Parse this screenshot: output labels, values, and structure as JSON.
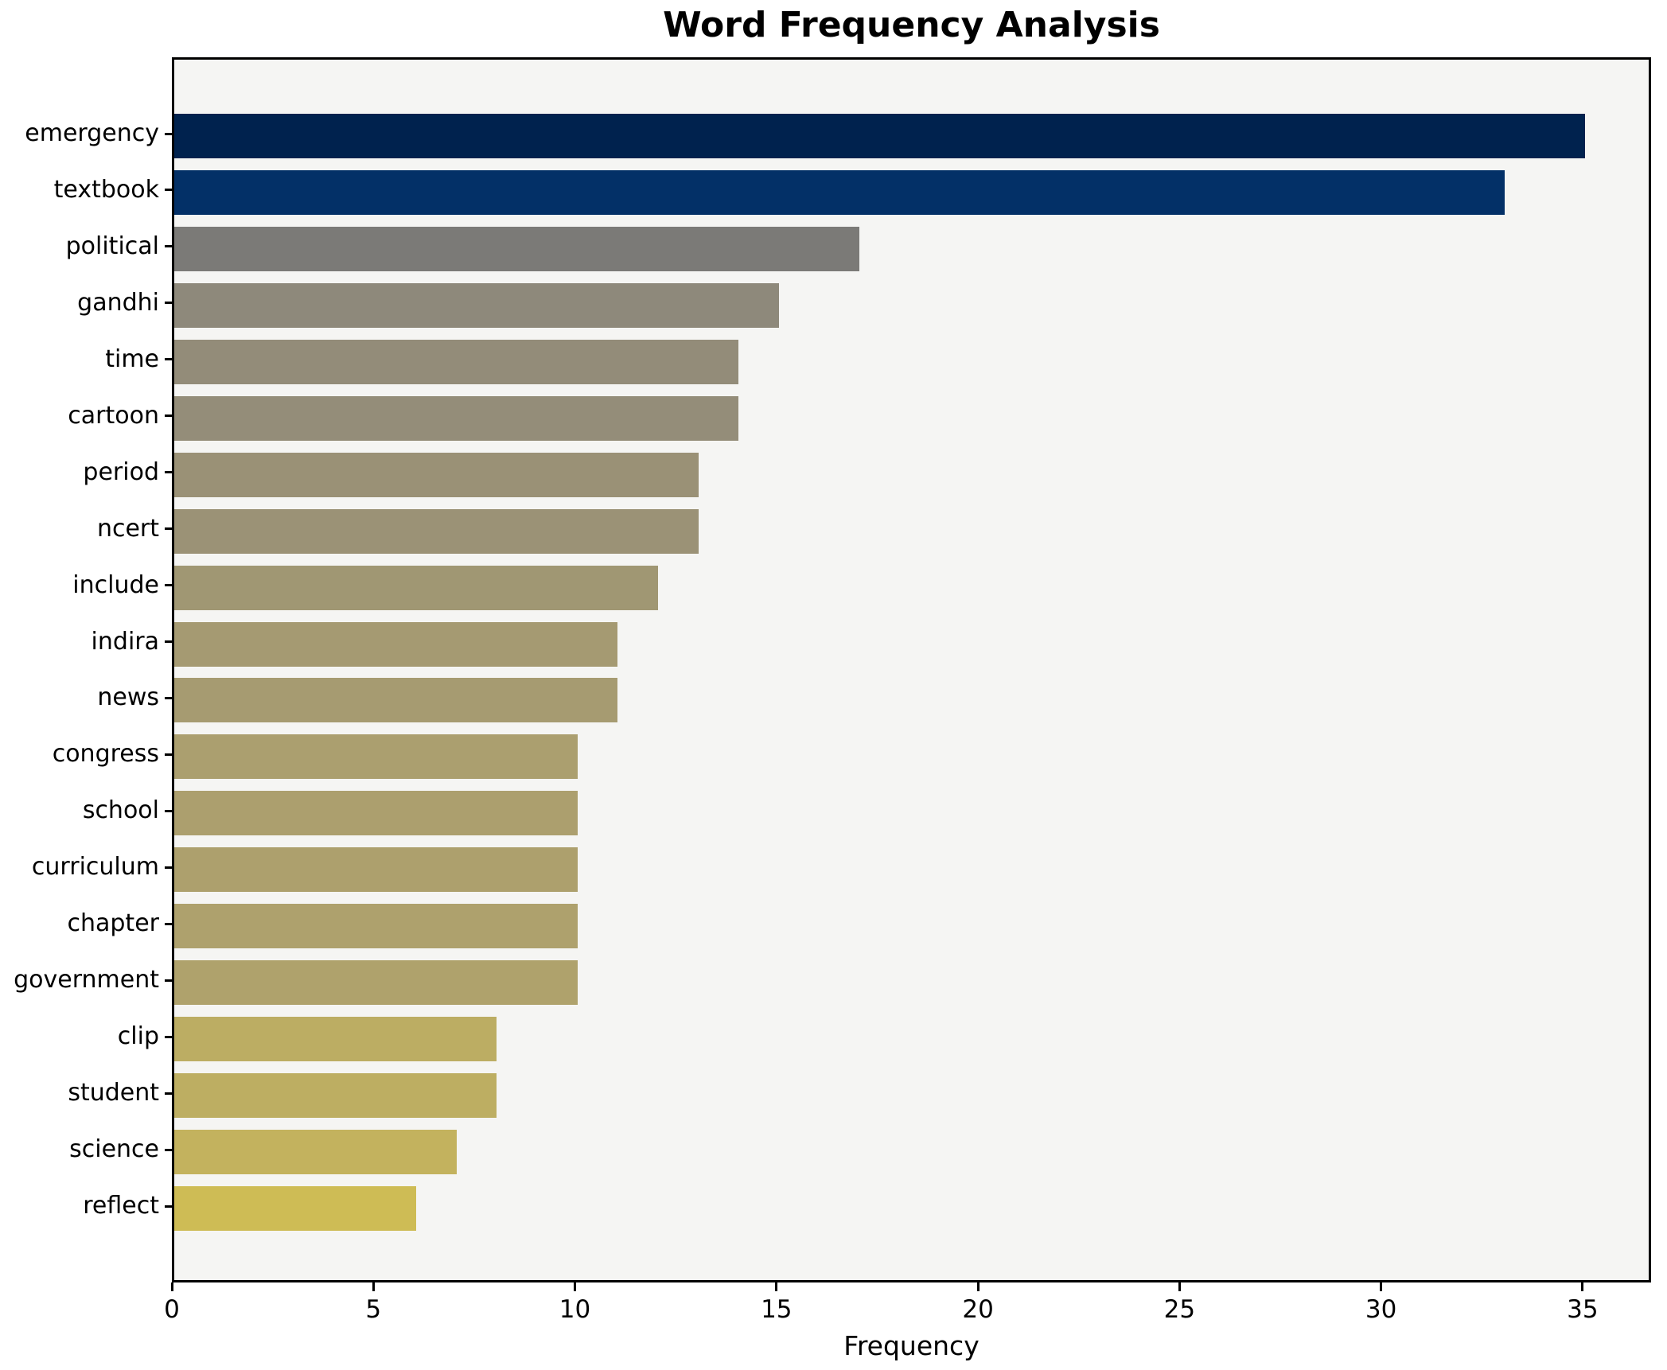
{
  "chart_data": {
    "type": "bar",
    "orientation": "horizontal",
    "title": "Word Frequency Analysis",
    "xlabel": "Frequency",
    "ylabel": "",
    "categories": [
      "emergency",
      "textbook",
      "political",
      "gandhi",
      "time",
      "cartoon",
      "period",
      "ncert",
      "include",
      "indira",
      "news",
      "congress",
      "school",
      "curriculum",
      "chapter",
      "government",
      "clip",
      "student",
      "science",
      "reflect"
    ],
    "values": [
      35,
      33,
      17,
      15,
      14,
      14,
      13,
      13,
      12,
      11,
      11,
      10,
      10,
      10,
      10,
      10,
      8,
      8,
      7,
      6
    ],
    "bar_colors": [
      "#00224e",
      "#033067",
      "#7b7a77",
      "#8e897b",
      "#938c79",
      "#948d79",
      "#9a9176",
      "#9b9276",
      "#a09773",
      "#a59a72",
      "#a69b71",
      "#ab9f6f",
      "#ac9f6e",
      "#ada06d",
      "#aea16d",
      "#afa26c",
      "#bcad63",
      "#bdae62",
      "#c3b25e",
      "#cebc55"
    ],
    "x_ticks": [
      0,
      5,
      10,
      15,
      20,
      25,
      30,
      35
    ],
    "xlim": [
      0,
      36.7
    ],
    "grid": false,
    "legend": "none",
    "plot_background": "#f5f5f3",
    "figure_background": "#ffffff",
    "spine_color": "#000000",
    "text_color": "#000000"
  }
}
